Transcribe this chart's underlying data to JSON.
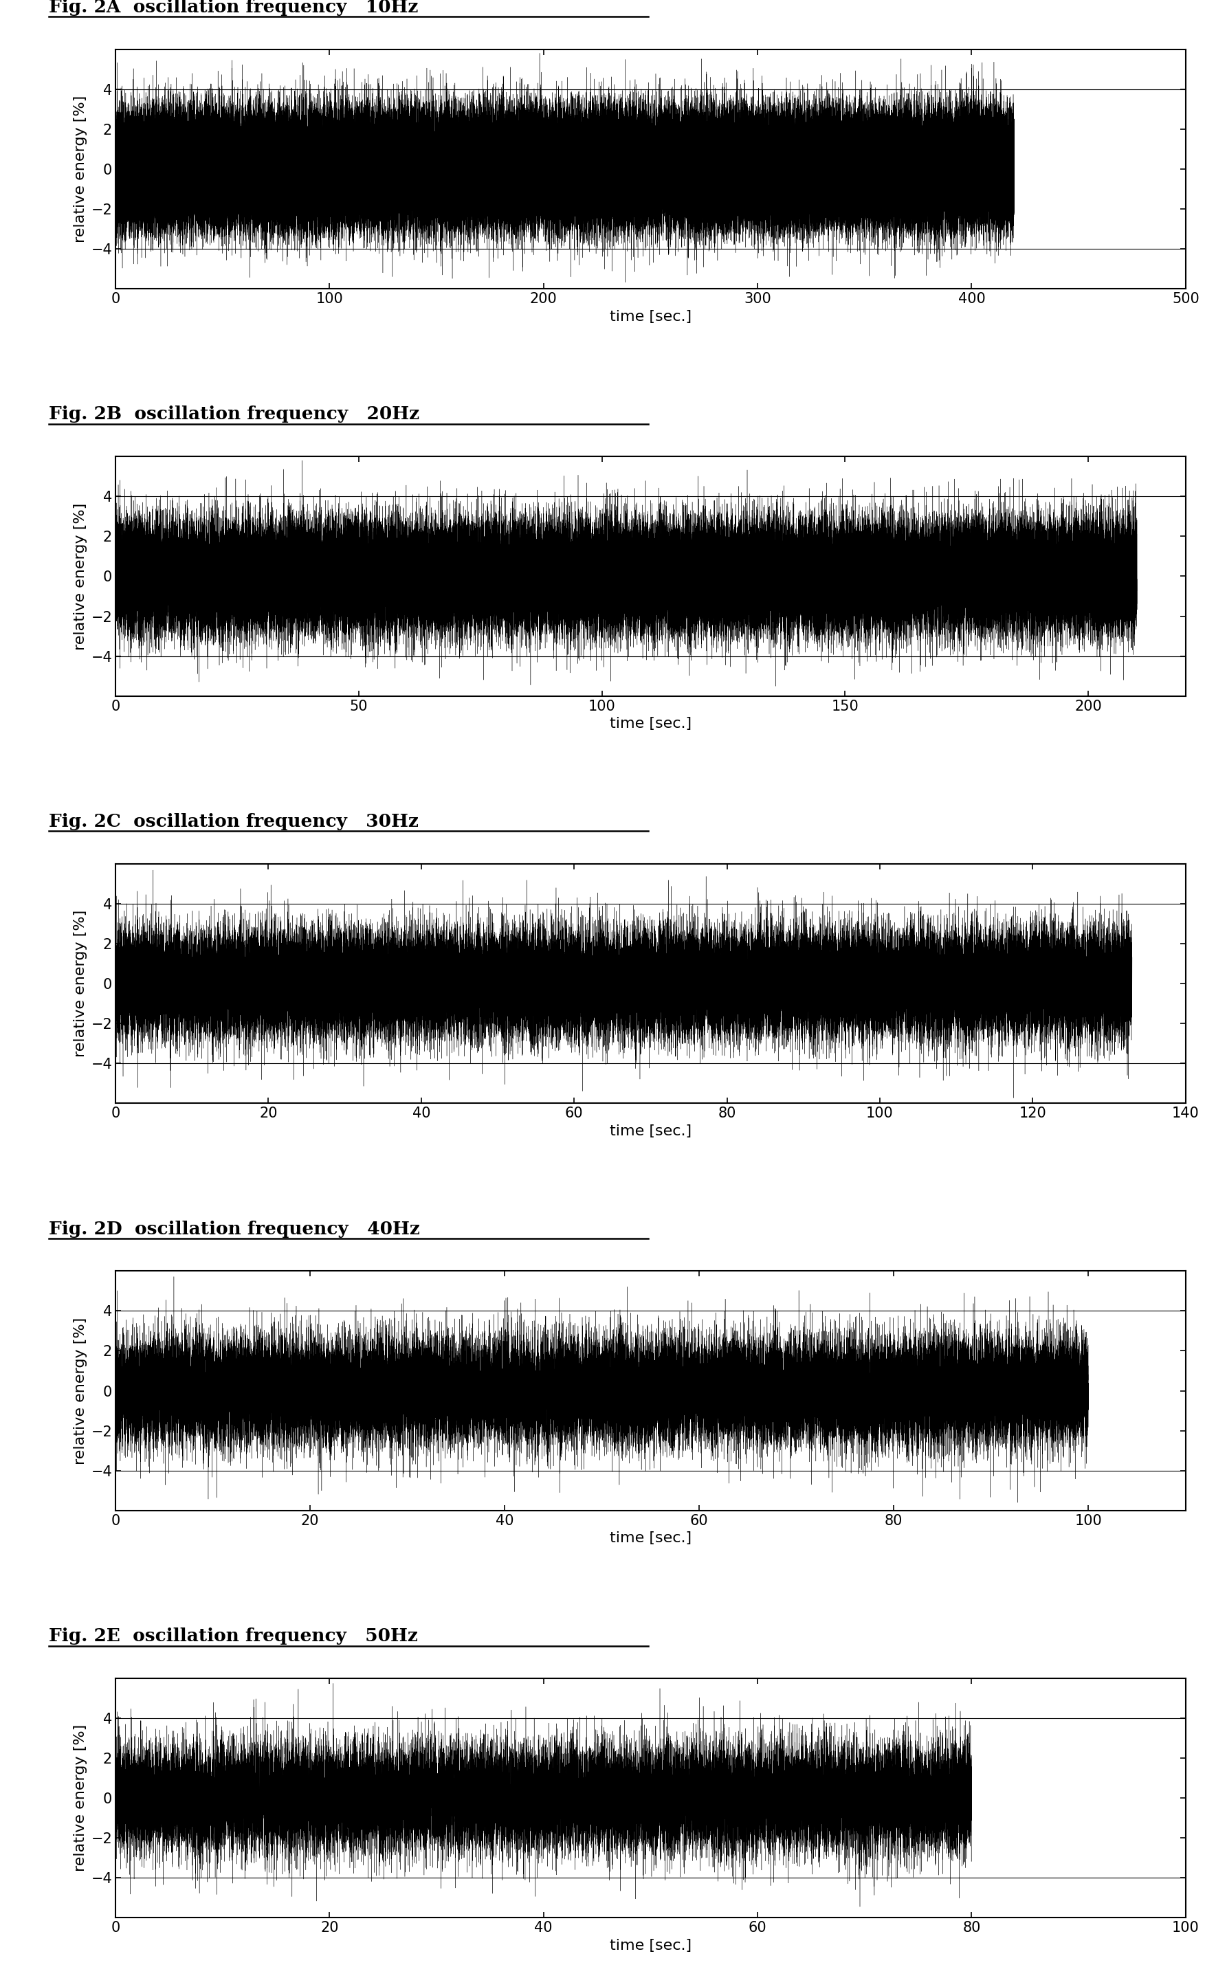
{
  "panels": [
    {
      "label": "Fig. 2A",
      "freq_label": "oscillation frequency   10Hz",
      "freq": 10,
      "xlim": [
        0,
        500
      ],
      "xticks": [
        0,
        100,
        200,
        300,
        400,
        500
      ],
      "ylim": [
        -6,
        6
      ],
      "yticks": [
        -4,
        -2,
        0,
        2,
        4
      ],
      "hlines": [
        4,
        -4
      ],
      "data_end": 420,
      "sample_rate": 500
    },
    {
      "label": "Fig. 2B",
      "freq_label": "oscillation frequency   20Hz",
      "freq": 20,
      "xlim": [
        0,
        220
      ],
      "xticks": [
        0,
        50,
        100,
        150,
        200
      ],
      "ylim": [
        -6,
        6
      ],
      "yticks": [
        -4,
        -2,
        0,
        2,
        4
      ],
      "hlines": [
        4,
        -4
      ],
      "data_end": 210,
      "sample_rate": 500
    },
    {
      "label": "Fig. 2C",
      "freq_label": "oscillation frequency   30Hz",
      "freq": 30,
      "xlim": [
        0,
        140
      ],
      "xticks": [
        0,
        20,
        40,
        60,
        80,
        100,
        120,
        140
      ],
      "ylim": [
        -6,
        6
      ],
      "yticks": [
        -4,
        -2,
        0,
        2,
        4
      ],
      "hlines": [
        4,
        -4
      ],
      "data_end": 133,
      "sample_rate": 500
    },
    {
      "label": "Fig. 2D",
      "freq_label": "oscillation frequency   40Hz",
      "freq": 40,
      "xlim": [
        0,
        110
      ],
      "xticks": [
        0,
        20,
        40,
        60,
        80,
        100
      ],
      "ylim": [
        -6,
        6
      ],
      "yticks": [
        -4,
        -2,
        0,
        2,
        4
      ],
      "hlines": [
        4,
        -4
      ],
      "data_end": 100,
      "sample_rate": 500
    },
    {
      "label": "Fig. 2E",
      "freq_label": "oscillation frequency   50Hz",
      "freq": 50,
      "xlim": [
        0,
        100
      ],
      "xticks": [
        0,
        20,
        40,
        60,
        80,
        100
      ],
      "ylim": [
        -6,
        6
      ],
      "yticks": [
        -4,
        -2,
        0,
        2,
        4
      ],
      "hlines": [
        4,
        -4
      ],
      "data_end": 80,
      "sample_rate": 500
    }
  ],
  "ylabel": "relative energy [%]",
  "xlabel": "time [sec.]",
  "bg_color": "white",
  "line_color": "black",
  "title_fontsize": 19,
  "tick_fontsize": 15,
  "axis_label_fontsize": 16
}
